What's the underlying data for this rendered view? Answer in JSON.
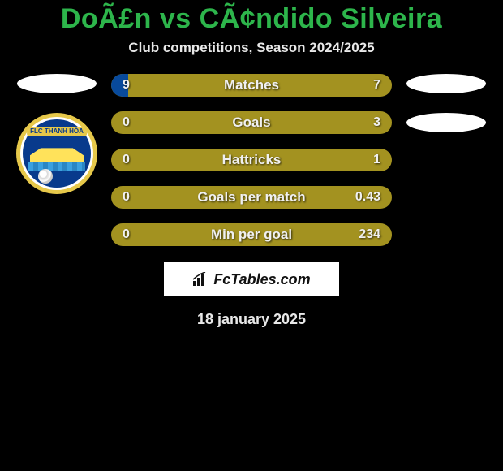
{
  "colors": {
    "background": "#000000",
    "title": "#2db54b",
    "subtitle": "#e8e8e8",
    "bar_bg": "#a39220",
    "bar_fill": "#084a9c",
    "bar_text": "#f0f0f0",
    "pill": "#ffffff",
    "brand_bg": "#ffffff",
    "brand_text": "#111111"
  },
  "title": "DoÃ£n vs CÃ¢ndido Silveira",
  "subtitle": "Club competitions, Season 2024/2025",
  "left_club": {
    "ribbon": "FLC THANH HÓA",
    "logo_colors": {
      "outer_ring": "#e6c84a",
      "inner": "#083a8c",
      "bridge": "#ffe25a"
    }
  },
  "bars": [
    {
      "label": "Matches",
      "left": "9",
      "right": "7",
      "left_pct": 6,
      "right_pct": 0
    },
    {
      "label": "Goals",
      "left": "0",
      "right": "3",
      "left_pct": 0,
      "right_pct": 0
    },
    {
      "label": "Hattricks",
      "left": "0",
      "right": "1",
      "left_pct": 0,
      "right_pct": 0
    },
    {
      "label": "Goals per match",
      "left": "0",
      "right": "0.43",
      "left_pct": 0,
      "right_pct": 0
    },
    {
      "label": "Min per goal",
      "left": "0",
      "right": "234",
      "left_pct": 0,
      "right_pct": 0
    }
  ],
  "brand": "FcTables.com",
  "date": "18 january 2025"
}
